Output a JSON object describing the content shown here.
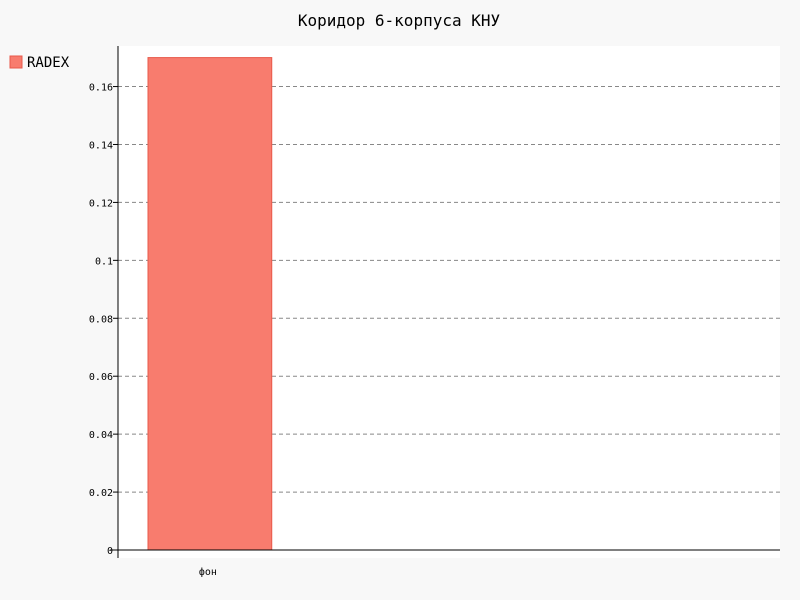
{
  "chart_data": {
    "type": "bar",
    "title": "Коридор 6-корпуса КНУ",
    "xlabel": "",
    "ylabel": "",
    "categories": [
      "фон"
    ],
    "series": [
      {
        "name": "RADEX",
        "values": [
          0.17
        ],
        "color": "#f87c6e",
        "stroke": "#e8594a"
      }
    ],
    "ylim": [
      0,
      0.174
    ],
    "yticks": [
      0,
      0.02,
      0.04,
      0.06,
      0.08,
      0.1,
      0.12,
      0.14,
      0.16
    ],
    "ytick_labels": [
      "0",
      "0.02",
      "0.04",
      "0.06",
      "0.08",
      "0.1",
      "0.12",
      "0.14",
      "0.16"
    ],
    "grid": true,
    "legend_position": "left"
  },
  "colors": {
    "page_background": "#f8f8f8",
    "plot_background": "#ffffff",
    "grid": "#888888"
  }
}
